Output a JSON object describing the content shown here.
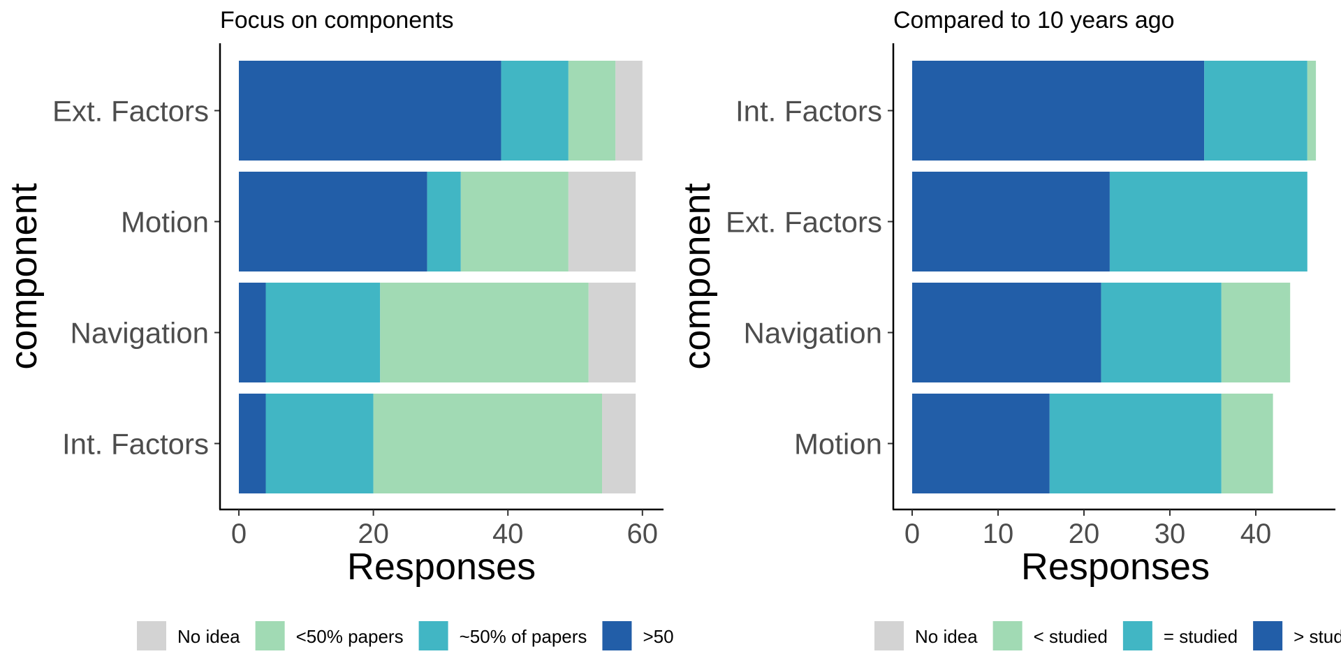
{
  "chart_data": [
    {
      "type": "bar",
      "orientation": "horizontal",
      "stacked": true,
      "title": "Focus on components",
      "xlabel": "Responses",
      "ylabel": "component",
      "categories": [
        "Ext. Factors",
        "Motion",
        "Navigation",
        "Int. Factors"
      ],
      "series": [
        {
          "name": ">50",
          "color": "#225ea8",
          "values": [
            39,
            28,
            4,
            4
          ]
        },
        {
          "name": "~50% of papers",
          "color": "#41b6c4",
          "values": [
            10,
            5,
            17,
            16
          ]
        },
        {
          "name": "<50% papers",
          "color": "#a1dab4",
          "values": [
            7,
            16,
            31,
            34
          ]
        },
        {
          "name": "No idea",
          "color": "#d3d3d3",
          "values": [
            4,
            10,
            7,
            5
          ]
        }
      ],
      "legend_order": [
        "No idea",
        "<50% papers",
        "~50% of papers",
        ">50"
      ],
      "xlim": [
        0,
        63
      ],
      "xticks": [
        "0",
        "20",
        "40",
        "60"
      ],
      "xtick_values": [
        0,
        20,
        40,
        60
      ],
      "legend_position": "bottom",
      "grid": false
    },
    {
      "type": "bar",
      "orientation": "horizontal",
      "stacked": true,
      "title": "Compared to 10 years ago",
      "xlabel": "Responses",
      "ylabel": "component",
      "categories": [
        "Int. Factors",
        "Ext. Factors",
        "Navigation",
        "Motion"
      ],
      "series": [
        {
          "name": "> studi",
          "color": "#225ea8",
          "values": [
            34,
            23,
            22,
            16
          ]
        },
        {
          "name": "= studied",
          "color": "#41b6c4",
          "values": [
            12,
            23,
            14,
            20
          ]
        },
        {
          "name": "< studied",
          "color": "#a1dab4",
          "values": [
            1,
            0,
            8,
            6
          ]
        },
        {
          "name": "No idea",
          "color": "#d3d3d3",
          "values": [
            0,
            0,
            0,
            0
          ]
        }
      ],
      "legend_order": [
        "No idea",
        "< studied",
        "= studied",
        "> studi"
      ],
      "xlim": [
        0,
        49.2
      ],
      "xticks": [
        "0",
        "10",
        "20",
        "30",
        "40"
      ],
      "xtick_values": [
        0,
        10,
        20,
        30,
        40
      ],
      "legend_position": "bottom",
      "grid": false
    }
  ]
}
